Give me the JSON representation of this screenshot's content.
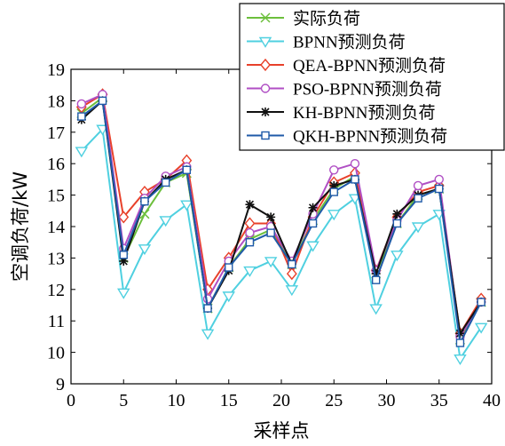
{
  "chart_data": {
    "type": "line",
    "xlabel": "采样点",
    "ylabel": "空调负荷/kW",
    "xlim": [
      0,
      40
    ],
    "ylim": [
      9,
      19
    ],
    "xticks": [
      0,
      5,
      10,
      15,
      20,
      25,
      30,
      35,
      40
    ],
    "yticks": [
      9,
      10,
      11,
      12,
      13,
      14,
      15,
      16,
      17,
      18,
      19
    ],
    "grid": false,
    "legend_position": "top-right",
    "x": [
      1,
      3,
      5,
      7,
      9,
      11,
      13,
      15,
      17,
      19,
      21,
      23,
      25,
      27,
      29,
      31,
      33,
      35,
      37,
      39
    ],
    "series": [
      {
        "name": "实际负荷",
        "color": "#6cbf3c",
        "marker": "x",
        "values": [
          17.6,
          18.1,
          13.0,
          14.4,
          15.4,
          15.7,
          11.4,
          12.7,
          13.6,
          13.9,
          12.8,
          14.2,
          15.2,
          15.6,
          12.5,
          14.1,
          15.0,
          15.2,
          10.4,
          11.6
        ]
      },
      {
        "name": "BPNN预测负荷",
        "color": "#4fd0e0",
        "marker": "triangle-down",
        "values": [
          16.4,
          17.1,
          11.9,
          13.3,
          14.2,
          14.7,
          10.6,
          11.8,
          12.6,
          12.9,
          12.0,
          13.4,
          14.4,
          14.9,
          11.4,
          13.1,
          14.0,
          14.4,
          9.8,
          10.8
        ]
      },
      {
        "name": "QEA-BPNN预测负荷",
        "color": "#e8412a",
        "marker": "diamond",
        "values": [
          17.8,
          18.2,
          14.3,
          15.1,
          15.5,
          16.1,
          12.0,
          13.0,
          14.1,
          14.1,
          12.5,
          14.3,
          15.4,
          15.7,
          12.6,
          14.3,
          15.1,
          15.3,
          10.6,
          11.7
        ]
      },
      {
        "name": "PSO-BPNN预测负荷",
        "color": "#b04fc4",
        "marker": "circle",
        "values": [
          17.9,
          18.2,
          13.3,
          14.9,
          15.6,
          15.9,
          11.7,
          12.9,
          13.8,
          14.0,
          12.9,
          14.4,
          15.8,
          16.0,
          12.6,
          14.2,
          15.3,
          15.5,
          10.5,
          11.6
        ]
      },
      {
        "name": "KH-BPNN预测负荷",
        "color": "#111111",
        "marker": "asterisk",
        "values": [
          17.4,
          18.0,
          12.9,
          14.8,
          15.5,
          15.8,
          11.4,
          12.6,
          14.7,
          14.3,
          12.8,
          14.6,
          15.3,
          15.5,
          12.5,
          14.4,
          15.0,
          15.2,
          10.6,
          11.6
        ]
      },
      {
        "name": "QKH-BPNN预测负荷",
        "color": "#1f5aa8",
        "marker": "square",
        "values": [
          17.5,
          18.0,
          13.1,
          14.8,
          15.4,
          15.8,
          11.4,
          12.7,
          13.5,
          13.8,
          12.8,
          14.1,
          15.1,
          15.5,
          12.3,
          14.1,
          14.9,
          15.2,
          10.3,
          11.6
        ]
      }
    ]
  }
}
